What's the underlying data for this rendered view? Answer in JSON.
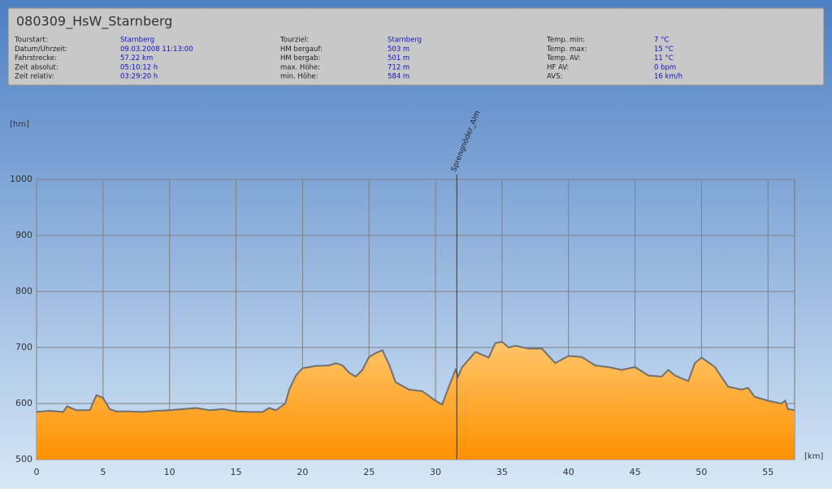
{
  "header": {
    "title": "080309_HsW_Starnberg",
    "columns": [
      [
        {
          "label": "Tourstart:",
          "value": "Starnberg"
        },
        {
          "label": "Datum/Uhrzeit:",
          "value": "09.03.2008 11:13:00"
        },
        {
          "label": "Fahrstrecke:",
          "value": "57.22 km"
        },
        {
          "label": "Zeit absolut:",
          "value": "05:10:12 h"
        },
        {
          "label": "Zeit relativ:",
          "value": "03:29:20 h"
        }
      ],
      [
        {
          "label": "Tourziel:",
          "value": "Starnberg"
        },
        {
          "label": "HM bergauf:",
          "value": "503 m"
        },
        {
          "label": "HM bergab:",
          "value": "501 m"
        },
        {
          "label": "max. Höhe:",
          "value": "712 m"
        },
        {
          "label": "min. Höhe:",
          "value": "584 m"
        }
      ],
      [
        {
          "label": "Temp. min:",
          "value": "7 °C"
        },
        {
          "label": "Temp. max:",
          "value": "15 °C"
        },
        {
          "label": "Temp. AV:",
          "value": "11 °C"
        },
        {
          "label": "HF AV:",
          "value": "0 bpm"
        },
        {
          "label": "AVS:",
          "value": "16 km/h"
        }
      ]
    ]
  },
  "chart_data": {
    "type": "area",
    "y_label": "[hm]",
    "x_label": "[km]",
    "x": [
      0,
      1,
      2,
      2.3,
      3,
      4,
      4.5,
      5,
      5.5,
      6,
      7,
      8,
      9,
      10,
      11,
      12,
      13,
      14,
      15,
      16,
      17,
      17.5,
      18,
      18.7,
      19,
      19.5,
      20,
      21,
      22,
      22.5,
      23,
      23.5,
      24,
      24.5,
      25,
      25.5,
      26,
      26.5,
      27,
      28,
      29,
      30,
      30.5,
      31,
      31.5,
      31.7,
      32,
      33,
      34,
      34.5,
      35,
      35.5,
      36,
      37,
      38,
      39,
      40,
      41,
      42,
      43,
      44,
      45,
      46,
      47,
      47.5,
      48,
      49,
      49.5,
      50,
      51,
      52,
      53,
      53.5,
      54,
      55,
      56,
      56.3,
      56.5,
      57
    ],
    "values": [
      585,
      587,
      585,
      595,
      588,
      588,
      615,
      610,
      590,
      586,
      586,
      585,
      587,
      588,
      590,
      592,
      588,
      590,
      586,
      585,
      585,
      592,
      588,
      600,
      625,
      650,
      663,
      667,
      668,
      672,
      668,
      655,
      648,
      660,
      683,
      690,
      695,
      670,
      638,
      625,
      622,
      605,
      598,
      630,
      660,
      648,
      665,
      692,
      682,
      708,
      710,
      700,
      703,
      698,
      698,
      672,
      685,
      683,
      668,
      665,
      660,
      665,
      650,
      648,
      660,
      650,
      640,
      672,
      682,
      665,
      630,
      625,
      628,
      612,
      605,
      600,
      605,
      590,
      588
    ],
    "xlim": [
      0,
      57
    ],
    "ylim": [
      500,
      1000
    ],
    "xticks": [
      0,
      5,
      10,
      15,
      20,
      25,
      30,
      35,
      40,
      45,
      50,
      55
    ],
    "yticks": [
      500,
      600,
      700,
      800,
      900,
      1000
    ],
    "grid": true,
    "color": "#ff9a10",
    "line_color": "#707070",
    "annotations": [
      {
        "x": 31.6,
        "label": "Sprengnöder_Alm"
      }
    ]
  }
}
